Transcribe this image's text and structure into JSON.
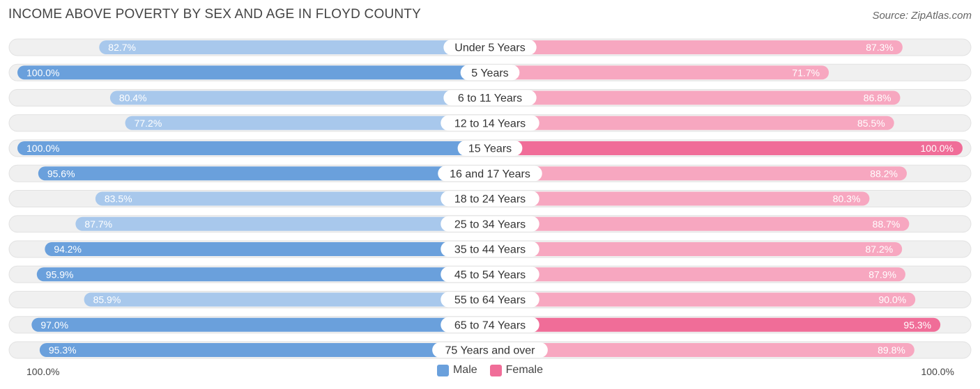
{
  "title": "INCOME ABOVE POVERTY BY SEX AND AGE IN FLOYD COUNTY",
  "source": "Source: ZipAtlas.com",
  "colors": {
    "male_strong": "#6aa0dc",
    "male_light": "#a8c8ec",
    "female_strong": "#f06d98",
    "female_light": "#f7a7c0",
    "track": "#f0f0f0"
  },
  "chart_data": {
    "type": "bar",
    "orientation": "horizontal-diverging",
    "title": "INCOME ABOVE POVERTY BY SEX AND AGE IN FLOYD COUNTY",
    "categories": [
      "Under 5 Years",
      "5 Years",
      "6 to 11 Years",
      "12 to 14 Years",
      "15 Years",
      "16 and 17 Years",
      "18 to 24 Years",
      "25 to 34 Years",
      "35 to 44 Years",
      "45 to 54 Years",
      "55 to 64 Years",
      "65 to 74 Years",
      "75 Years and over"
    ],
    "series": [
      {
        "name": "Male",
        "values": [
          82.7,
          100.0,
          80.4,
          77.2,
          100.0,
          95.6,
          83.5,
          87.7,
          94.2,
          95.9,
          85.9,
          97.0,
          95.3
        ]
      },
      {
        "name": "Female",
        "values": [
          87.3,
          71.7,
          86.8,
          85.5,
          100.0,
          88.2,
          80.3,
          88.7,
          87.2,
          87.9,
          90.0,
          95.3,
          89.8
        ]
      }
    ],
    "value_labels": {
      "male": [
        "82.7%",
        "100.0%",
        "80.4%",
        "77.2%",
        "100.0%",
        "95.6%",
        "83.5%",
        "87.7%",
        "94.2%",
        "95.9%",
        "85.9%",
        "97.0%",
        "95.3%"
      ],
      "female": [
        "87.3%",
        "71.7%",
        "86.8%",
        "85.5%",
        "100.0%",
        "88.2%",
        "80.3%",
        "88.7%",
        "87.2%",
        "87.9%",
        "90.0%",
        "95.3%",
        "89.8%"
      ]
    },
    "xlim": [
      0,
      100
    ],
    "axis_left_label": "100.0%",
    "axis_right_label": "100.0%",
    "legend": [
      "Male",
      "Female"
    ],
    "legend_position": "bottom-center"
  }
}
